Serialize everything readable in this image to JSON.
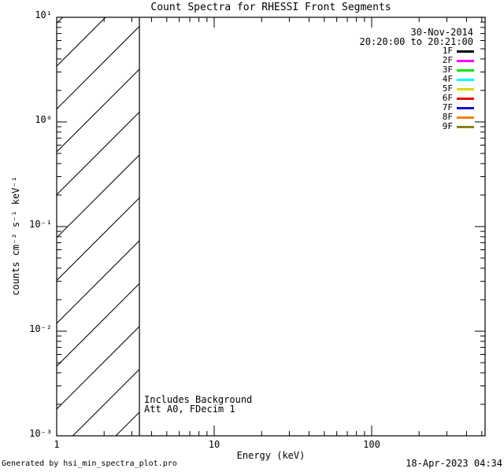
{
  "title": "Count Spectra for RHESSI Front Segments",
  "legend": {
    "date": "30-Nov-2014",
    "time_range": "20:20:00 to 20:21:00"
  },
  "annotations": {
    "line1": "Includes Background",
    "line2": "Att A0, FDecim 1"
  },
  "axes": {
    "x": {
      "label": "Energy (keV)",
      "tick_labels": [
        "1",
        "10",
        "100"
      ]
    },
    "y": {
      "label": "counts cm⁻² s⁻¹ keV⁻¹",
      "tick_labels": [
        "10¹",
        "10⁰",
        "10⁻¹",
        "10⁻²",
        "10⁻³"
      ]
    }
  },
  "footer": {
    "left": "Generated by hsi_min_spectra_plot.pro",
    "right": "18-Apr-2023 04:34"
  },
  "chart_data": {
    "type": "line",
    "title": "Count Spectra for RHESSI Front Segments",
    "xlabel": "Energy (keV)",
    "ylabel": "counts cm^-2 s^-1 keV^-1",
    "xscale": "log",
    "yscale": "log",
    "xlim": [
      1,
      525
    ],
    "ylim": [
      0.001,
      10
    ],
    "x_major_ticks": [
      1,
      10,
      100
    ],
    "y_major_ticks": [
      10,
      1,
      0.1,
      0.01,
      0.001
    ],
    "grid": false,
    "legend_position": "upper-right",
    "series": [
      {
        "name": "1F",
        "color": "#000000",
        "values": []
      },
      {
        "name": "2F",
        "color": "#ff00ff",
        "values": []
      },
      {
        "name": "3F",
        "color": "#00e400",
        "values": []
      },
      {
        "name": "4F",
        "color": "#00ffff",
        "values": []
      },
      {
        "name": "5F",
        "color": "#d8d800",
        "values": []
      },
      {
        "name": "6F",
        "color": "#e40000",
        "values": []
      },
      {
        "name": "7F",
        "color": "#1414cc",
        "values": []
      },
      {
        "name": "8F",
        "color": "#f08214",
        "values": []
      },
      {
        "name": "9F",
        "color": "#878200",
        "values": []
      }
    ],
    "hatched_region": {
      "x_start": 1,
      "x_end": 3.35,
      "style": "diagonal-hatch"
    },
    "note": "No spectra curves are drawn; plot area is empty except the hatched low-energy band."
  }
}
